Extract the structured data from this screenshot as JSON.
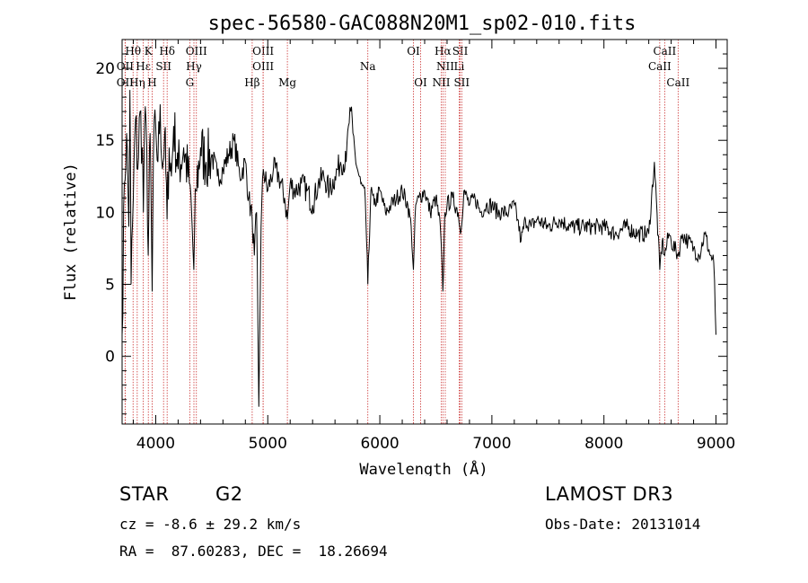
{
  "chart_data": {
    "type": "line",
    "title": "spec-56580-GAC088N20M1_sp02-010.fits",
    "xlabel": "Wavelength (Å)",
    "ylabel": "Flux (relative)",
    "xlim": [
      3700,
      9100
    ],
    "ylim": [
      -4.7,
      22
    ],
    "xticks": [
      4000,
      5000,
      6000,
      7000,
      8000,
      9000
    ],
    "yticks": [
      0,
      5,
      10,
      15,
      20
    ],
    "series": [
      {
        "name": "flux",
        "x": [
          3700,
          3720,
          3740,
          3760,
          3770,
          3780,
          3800,
          3820,
          3840,
          3860,
          3880,
          3890,
          3900,
          3920,
          3933,
          3950,
          3968,
          3980,
          4000,
          4020,
          4040,
          4060,
          4080,
          4101,
          4120,
          4140,
          4160,
          4200,
          4250,
          4300,
          4320,
          4340,
          4360,
          4400,
          4450,
          4500,
          4550,
          4600,
          4650,
          4700,
          4750,
          4800,
          4830,
          4861,
          4880,
          4900,
          4920,
          4940,
          4960,
          5000,
          5050,
          5100,
          5150,
          5175,
          5200,
          5250,
          5300,
          5350,
          5400,
          5450,
          5500,
          5550,
          5600,
          5650,
          5700,
          5720,
          5740,
          5760,
          5780,
          5800,
          5830,
          5870,
          5893,
          5920,
          5950,
          6000,
          6050,
          6100,
          6150,
          6200,
          6250,
          6280,
          6300,
          6320,
          6350,
          6400,
          6450,
          6500,
          6540,
          6563,
          6580,
          6600,
          6650,
          6700,
          6720,
          6750,
          6800,
          6850,
          6900,
          6950,
          7000,
          7050,
          7100,
          7150,
          7200,
          7230,
          7260,
          7300,
          7350,
          7400,
          7500,
          7600,
          7700,
          7800,
          7900,
          8000,
          8100,
          8200,
          8300,
          8400,
          8450,
          8498,
          8520,
          8542,
          8580,
          8600,
          8662,
          8700,
          8750,
          8800,
          8850,
          8900,
          8950,
          8980,
          9000
        ],
        "y": [
          1.5,
          12.0,
          15.5,
          9.0,
          18.5,
          5.0,
          11.0,
          16.5,
          13.0,
          17.0,
          14.5,
          10.0,
          16.0,
          14.5,
          7.0,
          15.5,
          4.5,
          14.0,
          16.0,
          13.5,
          17.5,
          13.0,
          15.5,
          9.5,
          14.5,
          12.5,
          16.0,
          13.0,
          14.5,
          12.0,
          10.0,
          6.0,
          11.5,
          14.5,
          13.5,
          14.0,
          12.5,
          13.0,
          14.0,
          15.0,
          12.5,
          13.5,
          11.0,
          9.5,
          7.0,
          10.0,
          -3.5,
          9.0,
          13.0,
          11.5,
          13.0,
          12.5,
          11.0,
          9.5,
          12.0,
          11.5,
          12.0,
          11.5,
          10.5,
          12.0,
          12.5,
          11.5,
          12.5,
          13.5,
          13.5,
          16.0,
          17.0,
          15.5,
          14.0,
          13.0,
          12.0,
          11.0,
          5.0,
          11.5,
          10.5,
          11.5,
          10.0,
          10.5,
          11.0,
          11.5,
          10.5,
          9.0,
          6.0,
          10.5,
          11.0,
          11.5,
          10.0,
          11.0,
          9.0,
          4.5,
          10.0,
          10.5,
          11.0,
          10.0,
          8.5,
          11.5,
          10.5,
          11.0,
          10.0,
          10.5,
          10.5,
          10.0,
          10.0,
          10.0,
          10.5,
          9.5,
          8.0,
          9.5,
          9.0,
          9.5,
          9.0,
          9.5,
          9.0,
          9.0,
          9.0,
          9.0,
          8.5,
          9.0,
          8.5,
          8.5,
          13.5,
          6.0,
          8.0,
          7.0,
          8.5,
          8.0,
          7.0,
          8.5,
          8.0,
          7.5,
          7.0,
          8.5,
          7.0,
          6.5,
          1.5
        ]
      }
    ],
    "lines": [
      {
        "name": "Hθ",
        "x": 3798,
        "row": 1
      },
      {
        "name": "Hη",
        "x": 3835,
        "row": 3
      },
      {
        "name": "OII",
        "x": 3727,
        "row": 2
      },
      {
        "name": "OII",
        "x": 3727,
        "row": 3
      },
      {
        "name": "Hε",
        "x": 3889,
        "row": 2
      },
      {
        "name": "K",
        "x": 3934,
        "row": 1
      },
      {
        "name": "H",
        "x": 3968,
        "row": 3
      },
      {
        "name": "SII",
        "x": 4070,
        "row": 2
      },
      {
        "name": "Hδ",
        "x": 4102,
        "row": 1
      },
      {
        "name": "OIII",
        "x": 4363,
        "row": 1
      },
      {
        "name": "Hγ",
        "x": 4341,
        "row": 2
      },
      {
        "name": "G",
        "x": 4304,
        "row": 3
      },
      {
        "name": "OIII",
        "x": 4959,
        "row": 1
      },
      {
        "name": "OIII",
        "x": 4959,
        "row": 2
      },
      {
        "name": "Hβ",
        "x": 4861,
        "row": 3
      },
      {
        "name": "Mg",
        "x": 5175,
        "row": 3
      },
      {
        "name": "Na",
        "x": 5893,
        "row": 2
      },
      {
        "name": "OI",
        "x": 6300,
        "row": 1
      },
      {
        "name": "OI",
        "x": 6364,
        "row": 3
      },
      {
        "name": "Hα",
        "x": 6563,
        "row": 1
      },
      {
        "name": "NII",
        "x": 6584,
        "row": 2
      },
      {
        "name": "NII",
        "x": 6548,
        "row": 3
      },
      {
        "name": "SII",
        "x": 6717,
        "row": 1
      },
      {
        "name": "Li",
        "x": 6708,
        "row": 2
      },
      {
        "name": "SII",
        "x": 6731,
        "row": 3
      },
      {
        "name": "CaII",
        "x": 8542,
        "row": 1
      },
      {
        "name": "CaII",
        "x": 8498,
        "row": 2
      },
      {
        "name": "CaII",
        "x": 8662,
        "row": 3
      }
    ],
    "line_color": "#cc3333"
  },
  "info": {
    "class": "STAR",
    "subclass": "G2",
    "survey": "LAMOST DR3",
    "cz": "cz = -8.6 ± 29.2 km/s",
    "obsdate": "Obs-Date: 20131014",
    "radec": "RA =  87.60283, DEC =  18.26694"
  }
}
